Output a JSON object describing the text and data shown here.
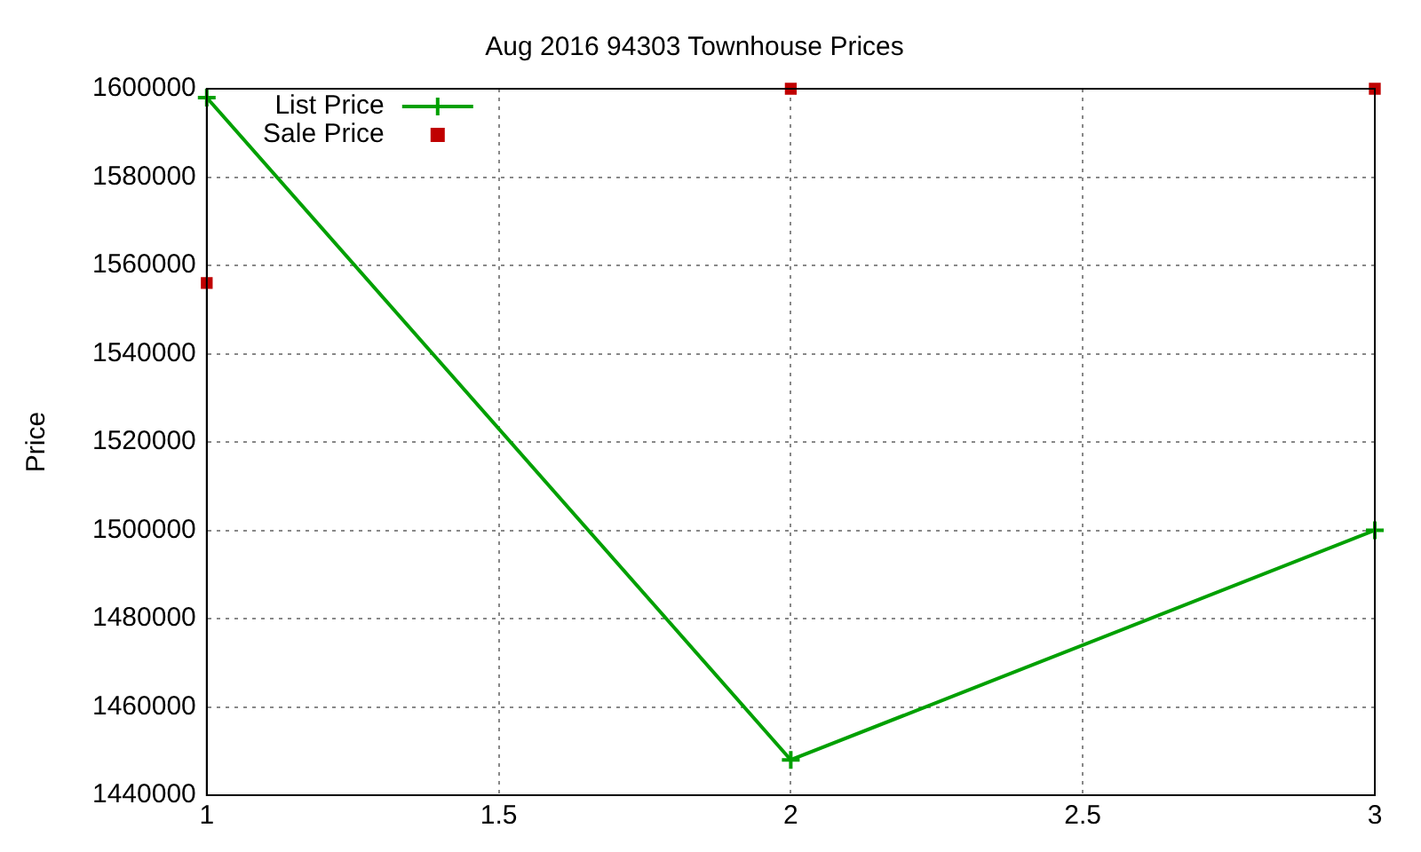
{
  "chart_data": {
    "type": "line",
    "title": "Aug 2016 94303 Townhouse Prices",
    "ylabel": "Price",
    "x": [
      1,
      2,
      3
    ],
    "xlim": [
      1,
      3
    ],
    "xticks": [
      1,
      1.5,
      2,
      2.5,
      3
    ],
    "ylim": [
      1440000,
      1600000
    ],
    "yticks": [
      1440000,
      1460000,
      1480000,
      1500000,
      1520000,
      1540000,
      1560000,
      1580000,
      1600000
    ],
    "grid": true,
    "legend": "top left",
    "series": [
      {
        "name": "List Price",
        "type": "line",
        "color": "#00a000",
        "marker": "cross",
        "values": [
          1598000,
          1448000,
          1500000
        ]
      },
      {
        "name": "Sale Price",
        "type": "scatter",
        "color": "#c00000",
        "marker": "square",
        "values": [
          1556000,
          1600000,
          1600000
        ]
      }
    ]
  }
}
